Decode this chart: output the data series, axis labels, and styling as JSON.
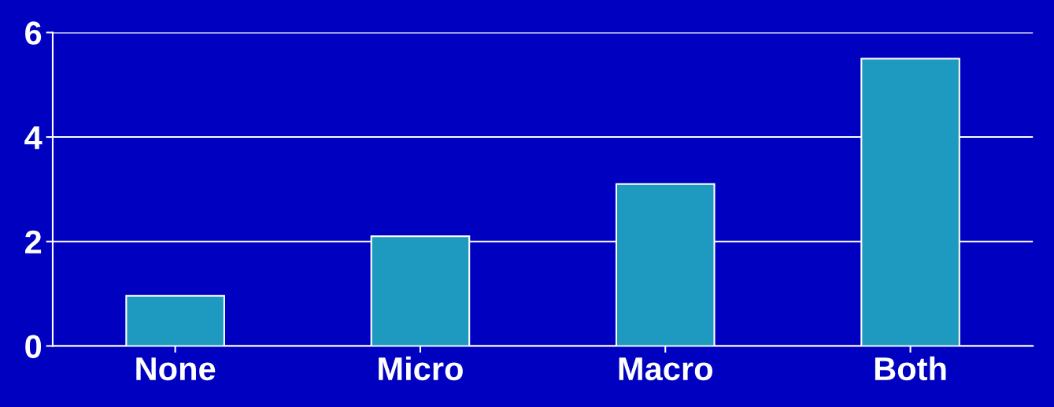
{
  "chart_data": {
    "type": "bar",
    "categories": [
      "None",
      "Micro",
      "Macro",
      "Both"
    ],
    "values": [
      0.96,
      2.1,
      3.1,
      5.5
    ],
    "color": "#1e9ac0",
    "ylim": [
      0,
      6
    ],
    "yticks": [
      0,
      2,
      4,
      6
    ],
    "grid": "y"
  }
}
